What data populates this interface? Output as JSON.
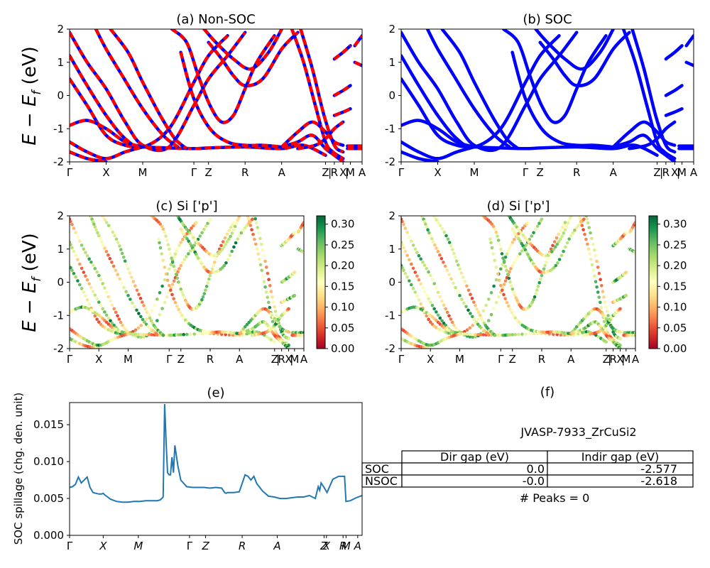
{
  "figure": {
    "tables": {
      "material_id": "JVASP-7933_ZrCuSi2",
      "col_labels": [
        "Dir gap (eV)",
        "Indir gap (eV)"
      ],
      "rows": [
        {
          "label": "SOC",
          "values": [
            "0.0",
            "-2.577"
          ]
        },
        {
          "label": "NSOC",
          "values": [
            "-0.0",
            "-2.618"
          ]
        }
      ],
      "peaks_text": "# Peaks = 0"
    }
  },
  "chart_data": [
    {
      "id": "a",
      "type": "line",
      "title": "(a) Non-SOC",
      "xlabel": "",
      "ylabel": "E − E_f (eV)",
      "ylim": [
        -2,
        2
      ],
      "xlim": [
        0,
        1
      ],
      "yticks": [
        "-2",
        "-1",
        "0",
        "1",
        "2"
      ],
      "kpath_labels": [
        "Γ",
        "X",
        "M",
        "Γ",
        "Z",
        "R",
        "A",
        "Z",
        "R",
        "X",
        "M",
        "A"
      ],
      "kpath_positions": [
        0,
        0.125,
        0.25,
        0.425,
        0.475,
        0.6,
        0.725,
        0.875,
        0.905,
        0.935,
        0.96,
        1.0
      ],
      "extra_separators": [
        "|",
        "|"
      ],
      "colors": {
        "bands": "#ff0000",
        "overlay": "#0000ff"
      },
      "series": [
        {
          "values": [
            [
              0,
              1.9
            ],
            [
              0.06,
              1.0
            ],
            [
              0.125,
              0.2
            ],
            [
              0.19,
              -0.8
            ],
            [
              0.25,
              -1.5
            ],
            [
              0.34,
              -1.55
            ],
            [
              0.425,
              -0.3
            ],
            [
              0.475,
              0.5
            ],
            [
              0.54,
              1.2
            ],
            [
              0.6,
              1.9
            ]
          ]
        },
        {
          "values": [
            [
              0,
              1.2
            ],
            [
              0.06,
              0.3
            ],
            [
              0.125,
              -0.6
            ],
            [
              0.19,
              -1.3
            ],
            [
              0.25,
              -1.55
            ],
            [
              0.34,
              -1.0
            ],
            [
              0.425,
              0.4
            ],
            [
              0.475,
              1.2
            ],
            [
              0.54,
              1.8
            ]
          ]
        },
        {
          "values": [
            [
              0,
              0.5
            ],
            [
              0.06,
              -0.3
            ],
            [
              0.125,
              -1.2
            ],
            [
              0.19,
              -1.5
            ],
            [
              0.25,
              -1.55
            ],
            [
              0.34,
              -1.58
            ],
            [
              0.425,
              -1.6
            ],
            [
              0.475,
              -1.58
            ],
            [
              0.6,
              -1.55
            ],
            [
              0.725,
              -1.6
            ],
            [
              0.8,
              -1.5
            ],
            [
              0.875,
              -1.8
            ]
          ]
        },
        {
          "values": [
            [
              0,
              -0.9
            ],
            [
              0.06,
              -0.75
            ],
            [
              0.125,
              -1.0
            ],
            [
              0.19,
              -1.4
            ],
            [
              0.25,
              -1.55
            ]
          ]
        },
        {
          "values": [
            [
              0,
              -1.4
            ],
            [
              0.06,
              -1.7
            ],
            [
              0.125,
              -1.9
            ],
            [
              0.19,
              -1.7
            ],
            [
              0.25,
              -1.55
            ]
          ]
        },
        {
          "values": [
            [
              0,
              -1.7
            ],
            [
              0.06,
              -1.9
            ],
            [
              0.125,
              -2.0
            ]
          ]
        },
        {
          "values": [
            [
              0.09,
              2.0
            ],
            [
              0.125,
              1.4
            ],
            [
              0.18,
              0.6
            ],
            [
              0.25,
              -0.4
            ],
            [
              0.32,
              -1.2
            ],
            [
              0.37,
              -1.55
            ]
          ]
        },
        {
          "values": [
            [
              0.14,
              2.0
            ],
            [
              0.2,
              1.3
            ],
            [
              0.25,
              0.4
            ],
            [
              0.31,
              -0.6
            ],
            [
              0.36,
              -1.3
            ],
            [
              0.4,
              -1.6
            ]
          ]
        },
        {
          "values": [
            [
              0.35,
              2.0
            ],
            [
              0.4,
              1.6
            ],
            [
              0.44,
              0.6
            ],
            [
              0.48,
              -0.3
            ],
            [
              0.52,
              -0.8
            ],
            [
              0.56,
              -0.6
            ],
            [
              0.6,
              0.2
            ],
            [
              0.64,
              1.0
            ],
            [
              0.7,
              1.8
            ]
          ]
        },
        {
          "values": [
            [
              0.38,
              1.3
            ],
            [
              0.425,
              -0.1
            ],
            [
              0.48,
              -1.0
            ],
            [
              0.54,
              -1.4
            ],
            [
              0.6,
              -1.5
            ],
            [
              0.66,
              -1.5
            ],
            [
              0.725,
              -1.55
            ]
          ]
        },
        {
          "values": [
            [
              0.46,
              2.0
            ],
            [
              0.5,
              1.6
            ],
            [
              0.56,
              1.1
            ],
            [
              0.62,
              0.8
            ],
            [
              0.68,
              1.3
            ],
            [
              0.725,
              2.0
            ]
          ]
        },
        {
          "values": [
            [
              0.475,
              1.6
            ],
            [
              0.52,
              1.1
            ],
            [
              0.56,
              0.6
            ],
            [
              0.6,
              0.3
            ],
            [
              0.66,
              0.5
            ],
            [
              0.725,
              1.4
            ],
            [
              0.78,
              1.9
            ]
          ]
        },
        {
          "values": [
            [
              0.76,
              2.0
            ],
            [
              0.8,
              1.0
            ],
            [
              0.84,
              -0.3
            ],
            [
              0.875,
              -1.4
            ],
            [
              0.9,
              -1.7
            ],
            [
              0.935,
              -1.9
            ]
          ]
        },
        {
          "values": [
            [
              0.79,
              2.0
            ],
            [
              0.83,
              0.8
            ],
            [
              0.87,
              -0.6
            ],
            [
              0.905,
              -1.5
            ],
            [
              0.935,
              -1.7
            ]
          ]
        },
        {
          "values": [
            [
              0.725,
              -1.55
            ],
            [
              0.78,
              -1.1
            ],
            [
              0.83,
              -0.8
            ],
            [
              0.875,
              -1.1
            ],
            [
              0.905,
              -1.4
            ],
            [
              0.935,
              -1.5
            ]
          ]
        },
        {
          "values": [
            [
              0.725,
              -1.55
            ],
            [
              0.78,
              -1.4
            ],
            [
              0.83,
              -1.2
            ],
            [
              0.875,
              -1.6
            ],
            [
              0.905,
              -1.8
            ],
            [
              0.935,
              -2.0
            ]
          ]
        },
        {
          "values": [
            [
              0.78,
              -1.6
            ],
            [
              0.84,
              -1.5
            ],
            [
              0.875,
              -1.3
            ],
            [
              0.905,
              -1.0
            ],
            [
              0.935,
              -0.8
            ]
          ]
        },
        {
          "values": [
            [
              0.905,
              1.1
            ],
            [
              0.935,
              1.3
            ],
            [
              0.96,
              1.5
            ]
          ]
        },
        {
          "values": [
            [
              0.905,
              0.0
            ],
            [
              0.935,
              0.15
            ],
            [
              0.96,
              0.3
            ]
          ]
        },
        {
          "values": [
            [
              0.905,
              -0.6
            ],
            [
              0.935,
              -0.5
            ],
            [
              0.96,
              -0.4
            ]
          ]
        },
        {
          "values": [
            [
              0.975,
              1.5
            ],
            [
              1.0,
              1.8
            ]
          ]
        },
        {
          "values": [
            [
              0.975,
              1.0
            ],
            [
              1.0,
              0.9
            ]
          ]
        },
        {
          "values": [
            [
              0.95,
              -1.52
            ],
            [
              1.0,
              -1.52
            ]
          ]
        },
        {
          "values": [
            [
              0.95,
              -1.6
            ],
            [
              1.0,
              -1.6
            ]
          ]
        }
      ]
    },
    {
      "id": "b",
      "type": "line",
      "title": "(b) SOC",
      "xlabel": "",
      "ylabel": "",
      "ylim": [
        -2,
        2
      ],
      "xlim": [
        0,
        1
      ],
      "yticks": [
        "-2",
        "-1",
        "0",
        "1",
        "2"
      ],
      "kpath_labels": [
        "Γ",
        "X",
        "M",
        "Γ",
        "Z",
        "R",
        "A",
        "Z",
        "R",
        "X",
        "M",
        "A"
      ],
      "kpath_positions": [
        0,
        0.125,
        0.25,
        0.425,
        0.475,
        0.6,
        0.725,
        0.875,
        0.905,
        0.935,
        0.96,
        1.0
      ],
      "extra_separators": [
        "|",
        "|"
      ],
      "colors": {
        "bands": "#0000ff"
      },
      "reuse_series_from": "a"
    },
    {
      "id": "c",
      "type": "scatter",
      "title": "(c)  Si ['p']",
      "xlabel": "",
      "ylabel": "E − E_f (eV)",
      "ylim": [
        -2,
        2
      ],
      "xlim": [
        0,
        1
      ],
      "yticks": [
        "-2",
        "-1",
        "0",
        "1",
        "2"
      ],
      "kpath_labels": [
        "Γ",
        "X",
        "M",
        "Γ",
        "Z",
        "R",
        "A",
        "Z",
        "R",
        "X",
        "M",
        "A"
      ],
      "kpath_positions": [
        0,
        0.125,
        0.25,
        0.425,
        0.475,
        0.6,
        0.725,
        0.875,
        0.905,
        0.935,
        0.96,
        1.0
      ],
      "extra_separators": [
        "|",
        "|"
      ],
      "colorbar": {
        "min": 0.0,
        "max": 0.32,
        "ticks": [
          "0.00",
          "0.05",
          "0.10",
          "0.15",
          "0.20",
          "0.25",
          "0.30"
        ],
        "colormap": "RdYlGn"
      },
      "reuse_series_from": "a"
    },
    {
      "id": "d",
      "type": "scatter",
      "title": "(d) Si ['p']",
      "xlabel": "",
      "ylabel": "",
      "ylim": [
        -2,
        2
      ],
      "xlim": [
        0,
        1
      ],
      "yticks": [
        "-2",
        "-1",
        "0",
        "1",
        "2"
      ],
      "kpath_labels": [
        "Γ",
        "X",
        "M",
        "Γ",
        "Z",
        "R",
        "A",
        "Z",
        "R",
        "X",
        "M",
        "A"
      ],
      "kpath_positions": [
        0,
        0.125,
        0.25,
        0.425,
        0.475,
        0.6,
        0.725,
        0.875,
        0.905,
        0.935,
        0.96,
        1.0
      ],
      "extra_separators": [
        "|",
        "|"
      ],
      "colorbar": {
        "min": 0.0,
        "max": 0.32,
        "ticks": [
          "0.00",
          "0.05",
          "0.10",
          "0.15",
          "0.20",
          "0.25",
          "0.30"
        ],
        "colormap": "RdYlGn"
      },
      "reuse_series_from": "a"
    },
    {
      "id": "e",
      "type": "line",
      "title": "(e)",
      "xlabel": "",
      "ylabel": "SOC spillage (chg. den. unit)",
      "ylim": [
        0,
        0.018
      ],
      "xlim": [
        0,
        1
      ],
      "yticks": [
        "0.000",
        "0.005",
        "0.010",
        "0.015"
      ],
      "ytick_values": [
        0,
        0.005,
        0.01,
        0.015
      ],
      "kpath_labels": [
        "Γ",
        "X",
        "M",
        "Γ",
        "Z",
        "R",
        "A",
        "Z",
        "X",
        "R",
        "M",
        "A"
      ],
      "kpath_positions": [
        0,
        0.115,
        0.235,
        0.41,
        0.465,
        0.59,
        0.71,
        0.87,
        0.878,
        0.935,
        0.945,
        0.985
      ],
      "colors": {
        "line": "#1f77b4"
      },
      "series": [
        {
          "x": [
            0,
            0.01,
            0.02,
            0.03,
            0.04,
            0.05,
            0.06,
            0.07,
            0.08,
            0.09,
            0.1,
            0.11,
            0.115,
            0.12,
            0.13,
            0.14,
            0.16,
            0.18,
            0.2,
            0.22,
            0.24,
            0.26,
            0.28,
            0.3,
            0.31,
            0.32,
            0.325,
            0.33,
            0.335,
            0.34,
            0.345,
            0.35,
            0.355,
            0.36,
            0.37,
            0.38,
            0.4,
            0.42,
            0.44,
            0.46,
            0.48,
            0.5,
            0.52,
            0.53,
            0.535,
            0.54,
            0.56,
            0.58,
            0.6,
            0.61,
            0.62,
            0.63,
            0.64,
            0.66,
            0.68,
            0.7,
            0.72,
            0.74,
            0.76,
            0.78,
            0.8,
            0.82,
            0.84,
            0.85,
            0.855,
            0.86,
            0.87,
            0.88,
            0.9,
            0.92,
            0.94,
            0.945,
            0.96,
            0.98,
            1.0
          ],
          "y": [
            0.0065,
            0.0066,
            0.0069,
            0.0079,
            0.0071,
            0.0075,
            0.0079,
            0.0065,
            0.0058,
            0.0057,
            0.0056,
            0.0056,
            0.0057,
            0.0055,
            0.0052,
            0.0049,
            0.0046,
            0.0045,
            0.0045,
            0.0046,
            0.0046,
            0.0047,
            0.0047,
            0.0047,
            0.0048,
            0.0052,
            0.0178,
            0.0125,
            0.0085,
            0.0082,
            0.0082,
            0.0106,
            0.0085,
            0.0122,
            0.0095,
            0.0075,
            0.0066,
            0.0065,
            0.0065,
            0.0065,
            0.0064,
            0.0065,
            0.0064,
            0.0058,
            0.0057,
            0.0058,
            0.0058,
            0.0059,
            0.0082,
            0.008,
            0.0075,
            0.008,
            0.007,
            0.006,
            0.0053,
            0.0052,
            0.005,
            0.005,
            0.0051,
            0.0052,
            0.0052,
            0.0054,
            0.005,
            0.0066,
            0.0061,
            0.0071,
            0.0065,
            0.0058,
            0.0076,
            0.008,
            0.008,
            0.0046,
            0.0047,
            0.0051,
            0.0054
          ]
        }
      ]
    }
  ],
  "panel_f": {
    "title": "(f)"
  }
}
